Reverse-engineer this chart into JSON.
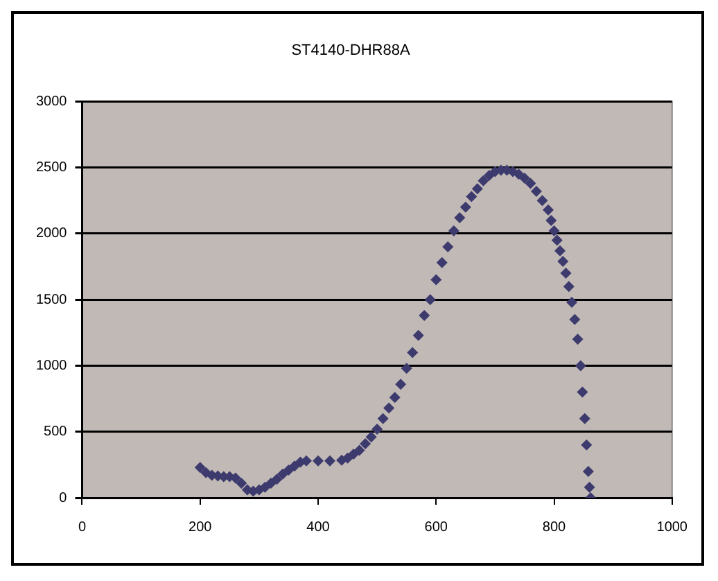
{
  "chart_data": {
    "type": "scatter",
    "title": "ST4140-DHR88A",
    "marker": "diamond",
    "grid": "y",
    "legend": false,
    "xlim": [
      0,
      1000
    ],
    "xticks": [
      0,
      200,
      400,
      600,
      800,
      1000
    ],
    "ylim": [
      0,
      3000
    ],
    "yticks": [
      0,
      500,
      1000,
      1500,
      2000,
      2500,
      3000
    ],
    "series": [
      {
        "color": "#3d3a6e",
        "x": [
          200,
          210,
          220,
          230,
          240,
          250,
          260,
          270,
          280,
          290,
          300,
          310,
          320,
          330,
          340,
          350,
          360,
          370,
          380,
          400,
          420,
          440,
          450,
          460,
          470,
          480,
          490,
          500,
          510,
          520,
          530,
          540,
          550,
          560,
          570,
          580,
          590,
          600,
          610,
          620,
          630,
          640,
          650,
          660,
          670,
          680,
          690,
          700,
          710,
          720,
          730,
          740,
          750,
          760,
          770,
          780,
          790,
          795,
          800,
          805,
          810,
          815,
          820,
          825,
          830,
          835,
          840,
          845,
          848,
          852,
          855,
          858,
          860,
          862
        ],
        "values": [
          230,
          190,
          170,
          165,
          160,
          160,
          150,
          110,
          60,
          50,
          60,
          80,
          110,
          140,
          180,
          210,
          240,
          270,
          280,
          280,
          280,
          285,
          300,
          330,
          360,
          410,
          460,
          520,
          600,
          680,
          760,
          860,
          980,
          1100,
          1230,
          1380,
          1500,
          1650,
          1780,
          1900,
          2020,
          2120,
          2200,
          2280,
          2340,
          2400,
          2440,
          2470,
          2480,
          2480,
          2470,
          2450,
          2420,
          2380,
          2320,
          2250,
          2180,
          2100,
          2020,
          1950,
          1870,
          1790,
          1700,
          1600,
          1480,
          1350,
          1200,
          1000,
          800,
          600,
          400,
          200,
          80,
          0
        ]
      }
    ]
  }
}
